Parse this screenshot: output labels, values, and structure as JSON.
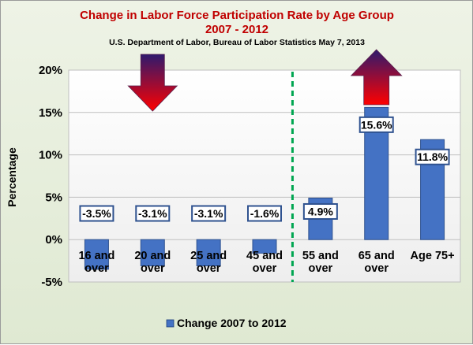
{
  "chart_data": {
    "type": "bar",
    "title": "Change in Labor Force Participation Rate by Age Group",
    "title_line2": "2007 - 2012",
    "subtitle": "U.S. Department of Labor, Bureau of Labor Statistics May 7, 2013",
    "ylabel": "Percentage",
    "xlabel": "",
    "ylim": [
      -5,
      20
    ],
    "yticks": [
      -5,
      0,
      5,
      10,
      15,
      20
    ],
    "ytick_labels": [
      "-5%",
      "0%",
      "5%",
      "10%",
      "15%",
      "20%"
    ],
    "categories": [
      [
        "16 and",
        "over"
      ],
      [
        "20 and",
        "over"
      ],
      [
        "25 and",
        "over"
      ],
      [
        "45 and",
        "over"
      ],
      [
        "55 and",
        "over"
      ],
      [
        "65 and",
        "over"
      ],
      [
        "Age 75+"
      ]
    ],
    "series": [
      {
        "name": "Change 2007 to 2012",
        "values": [
          -3.5,
          -3.1,
          -3.1,
          -1.6,
          4.9,
          15.6,
          11.8
        ],
        "data_labels": [
          "-3.5%",
          "-3.1%",
          "-3.1%",
          "-1.6%",
          "4.9%",
          "15.6%",
          "11.8%"
        ],
        "color": "#4472c4"
      }
    ],
    "grid": true,
    "legend": "bottom",
    "annotations": {
      "divider": "dashed vertical line between 45 and over and 55 and over",
      "divider_color": "#00a651",
      "arrows": [
        "down arrow over 20 and over",
        "up arrow over 65 and over"
      ],
      "arrow_colors": [
        "#2e1a6e",
        "#ff0000"
      ]
    }
  }
}
